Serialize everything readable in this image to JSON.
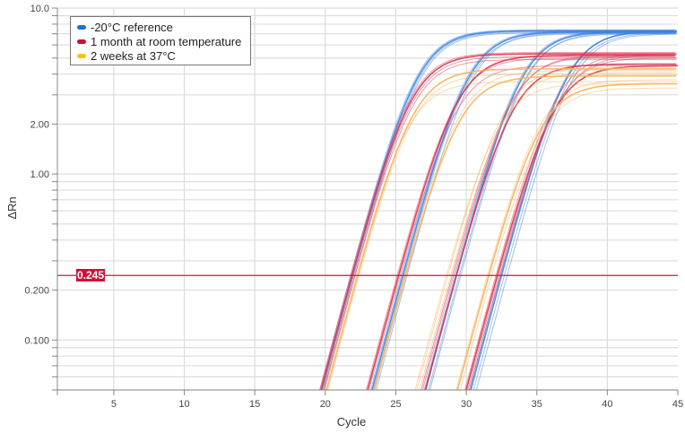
{
  "chart_data": {
    "type": "line",
    "title": "",
    "xlabel": "Cycle",
    "ylabel": "ΔRn",
    "xlim": [
      1,
      45
    ],
    "ylim": [
      0.05,
      10
    ],
    "yscale": "log",
    "xticks": [
      5,
      10,
      15,
      20,
      25,
      30,
      35,
      40,
      45
    ],
    "yticks": [
      {
        "v": 10,
        "label": "10.0"
      },
      {
        "v": 2,
        "label": "2.00"
      },
      {
        "v": 1,
        "label": "1.00"
      },
      {
        "v": 0.2,
        "label": "0.200"
      },
      {
        "v": 0.1,
        "label": "0.100"
      }
    ],
    "grid": true,
    "legend_position": "top-left",
    "threshold": {
      "value": 0.245,
      "label": "0.245",
      "color": "#c8193f"
    },
    "series": [
      {
        "name": "-20°C reference",
        "color": "#1f6fd6",
        "curve_color": "#3b82e0",
        "curves": [
          {
            "ct": 21.9,
            "plateau": 7.3
          },
          {
            "ct": 22.0,
            "plateau": 7.2
          },
          {
            "ct": 21.8,
            "plateau": 7.4
          },
          {
            "ct": 22.1,
            "plateau": 7.1
          },
          {
            "ct": 25.5,
            "plateau": 7.2
          },
          {
            "ct": 25.6,
            "plateau": 7.0
          },
          {
            "ct": 25.4,
            "plateau": 7.3
          },
          {
            "ct": 25.8,
            "plateau": 7.1
          },
          {
            "ct": 29.3,
            "plateau": 7.2
          },
          {
            "ct": 29.5,
            "plateau": 7.0
          },
          {
            "ct": 29.2,
            "plateau": 7.3
          },
          {
            "ct": 29.6,
            "plateau": 7.1
          },
          {
            "ct": 32.5,
            "plateau": 7.3
          },
          {
            "ct": 32.7,
            "plateau": 7.1
          },
          {
            "ct": 32.4,
            "plateau": 7.2
          },
          {
            "ct": 32.9,
            "plateau": 7.0
          }
        ]
      },
      {
        "name": "1 month at room temperature",
        "color": "#c8102e",
        "curve_color": "#d9344f",
        "curves": [
          {
            "ct": 21.9,
            "plateau": 5.3
          },
          {
            "ct": 22.0,
            "plateau": 5.1
          },
          {
            "ct": 22.1,
            "plateau": 4.9
          },
          {
            "ct": 21.8,
            "plateau": 5.4
          },
          {
            "ct": 25.2,
            "plateau": 5.2
          },
          {
            "ct": 25.3,
            "plateau": 4.5
          },
          {
            "ct": 25.1,
            "plateau": 5.0
          },
          {
            "ct": 29.1,
            "plateau": 5.2
          },
          {
            "ct": 29.3,
            "plateau": 4.6
          },
          {
            "ct": 29.0,
            "plateau": 5.1
          },
          {
            "ct": 32.1,
            "plateau": 5.3
          },
          {
            "ct": 32.3,
            "plateau": 5.0
          },
          {
            "ct": 32.2,
            "plateau": 4.5
          },
          {
            "ct": 32.4,
            "plateau": 5.2
          }
        ]
      },
      {
        "name": "2 weeks at 37°C",
        "color": "#ffc20e",
        "curve_color": "#f6b35a",
        "curves": [
          {
            "ct": 22.3,
            "plateau": 4.3
          },
          {
            "ct": 22.4,
            "plateau": 4.0
          },
          {
            "ct": 22.2,
            "plateau": 3.6
          },
          {
            "ct": 25.6,
            "plateau": 4.2
          },
          {
            "ct": 25.7,
            "plateau": 3.9
          },
          {
            "ct": 28.7,
            "plateau": 4.4
          },
          {
            "ct": 28.9,
            "plateau": 4.1
          },
          {
            "ct": 28.6,
            "plateau": 3.5
          },
          {
            "ct": 31.6,
            "plateau": 3.5
          },
          {
            "ct": 31.8,
            "plateau": 3.3
          },
          {
            "ct": 31.5,
            "plateau": 3.7
          }
        ]
      }
    ]
  }
}
